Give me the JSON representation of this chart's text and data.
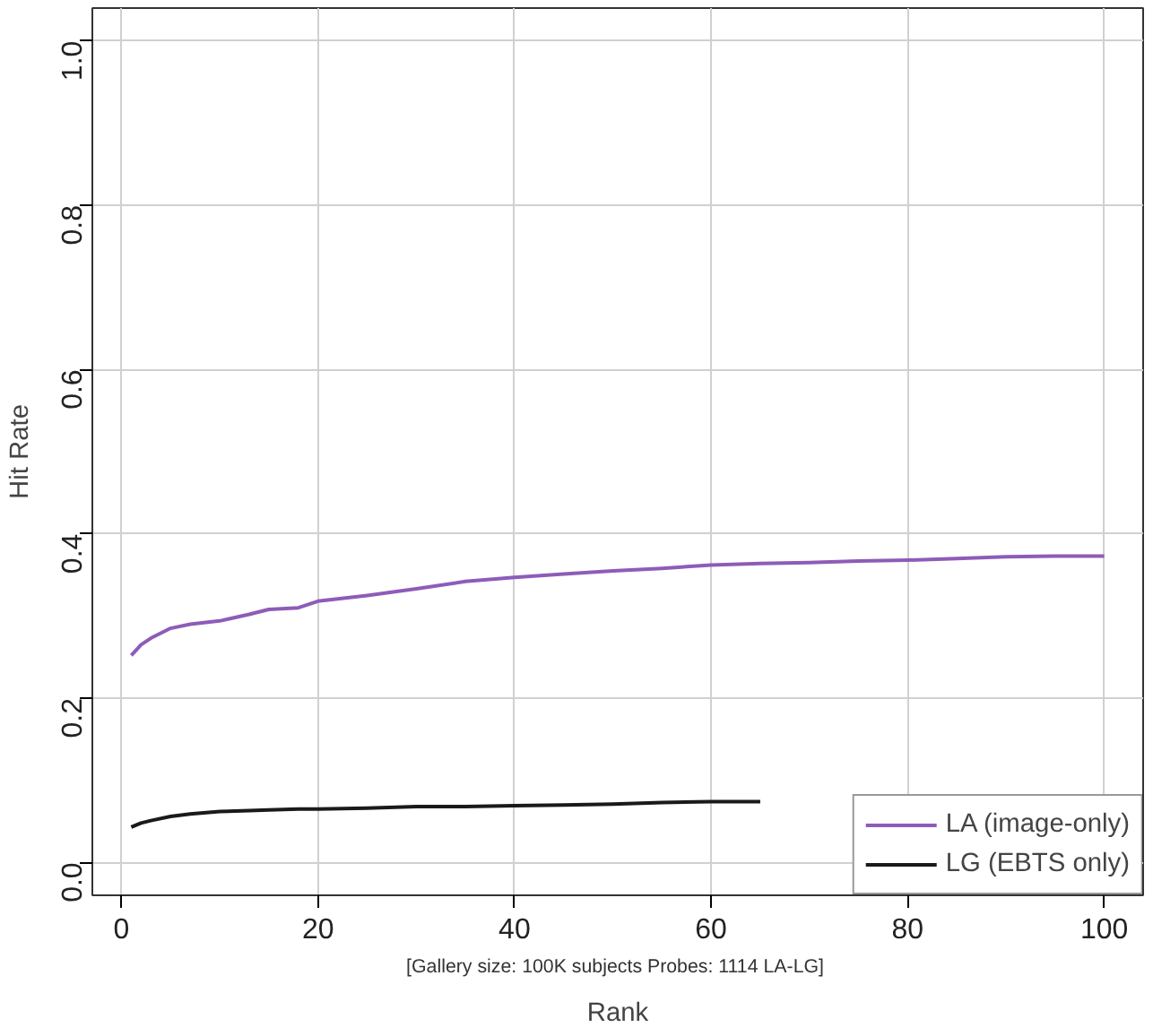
{
  "chart_data": {
    "type": "line",
    "xlabel": "Rank",
    "ylabel": "Hit Rate",
    "annotations": [
      "[Gallery size: 100K subjects  Probes: 1114 LA-LG]"
    ],
    "xlim": [
      -2.96,
      103.96
    ],
    "ylim": [
      -0.04,
      1.04
    ],
    "xticks": [
      0,
      20,
      40,
      60,
      80,
      100
    ],
    "yticks": [
      {
        "value": 0,
        "label": "0.0"
      },
      0.2,
      0.4,
      0.6,
      0.8,
      {
        "value": 1,
        "label": "1.0"
      }
    ],
    "grid": true,
    "legend": "bottom right",
    "line_style": "solid",
    "marker": "none",
    "x": [
      1,
      2,
      3,
      5,
      7,
      10,
      13,
      15,
      18,
      20,
      25,
      30,
      35,
      40,
      45,
      50,
      55,
      60,
      65,
      70,
      75,
      80,
      85,
      90,
      95,
      100
    ],
    "series": [
      {
        "name": "LA (image-only)",
        "color": "#8e5cb8",
        "values": [
          0.252,
          0.265,
          0.273,
          0.285,
          0.29,
          0.294,
          0.302,
          0.308,
          0.31,
          0.318,
          0.325,
          0.333,
          0.342,
          0.347,
          0.351,
          0.355,
          0.358,
          0.362,
          0.364,
          0.365,
          0.367,
          0.368,
          0.37,
          0.372,
          0.373,
          0.373
        ]
      },
      {
        "name": "LG (EBTS only)",
        "color": "#1a1a1a",
        "values": [
          0.043,
          0.048,
          0.051,
          0.056,
          0.059,
          0.062,
          0.063,
          0.064,
          0.065,
          0.065,
          0.066,
          0.068,
          0.068,
          0.069,
          0.07,
          0.071,
          0.073,
          0.074,
          0.074,
          null,
          null,
          null,
          null,
          null,
          null,
          null
        ]
      }
    ]
  }
}
